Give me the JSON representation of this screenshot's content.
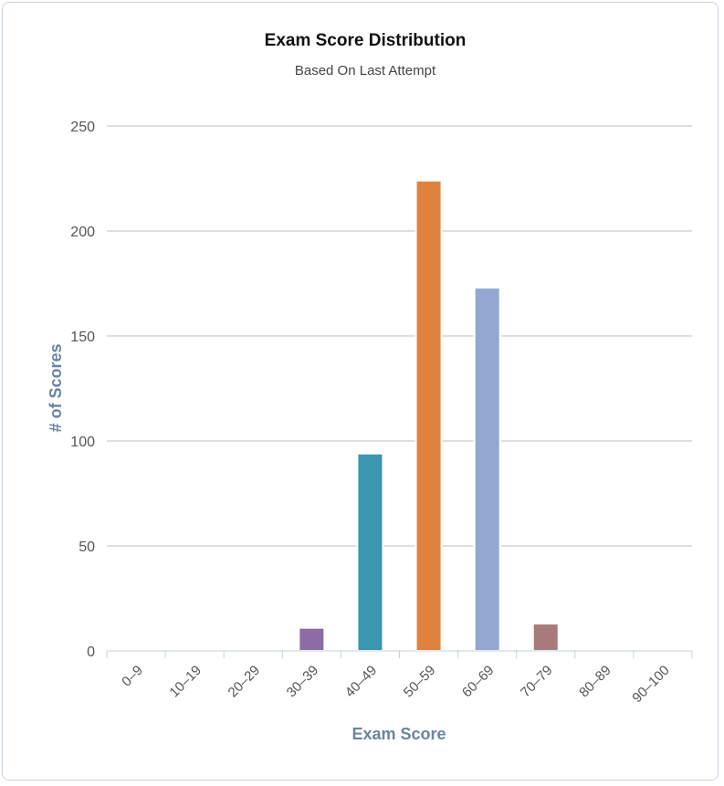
{
  "chart_data": {
    "type": "bar",
    "title": "Exam Score Distribution",
    "subtitle": "Based On Last Attempt",
    "xlabel": "Exam Score",
    "ylabel": "# of Scores",
    "categories": [
      "0–9",
      "10–19",
      "20–29",
      "30–39",
      "40–49",
      "50–59",
      "60–69",
      "70–79",
      "80–89",
      "90–100"
    ],
    "values": [
      0,
      0,
      0,
      11,
      94,
      224,
      173,
      13,
      0,
      0
    ],
    "colors": [
      "#7cb5ec",
      "#434348",
      "#90ed7d",
      "#8d6ba3",
      "#3a97b0",
      "#e0823d",
      "#93a8d0",
      "#a77b7b",
      "#f7a35c",
      "#8085e9"
    ],
    "yticks": [
      0,
      50,
      100,
      150,
      200,
      250
    ],
    "ylim": [
      0,
      250
    ],
    "grid": true,
    "legend": "none"
  }
}
